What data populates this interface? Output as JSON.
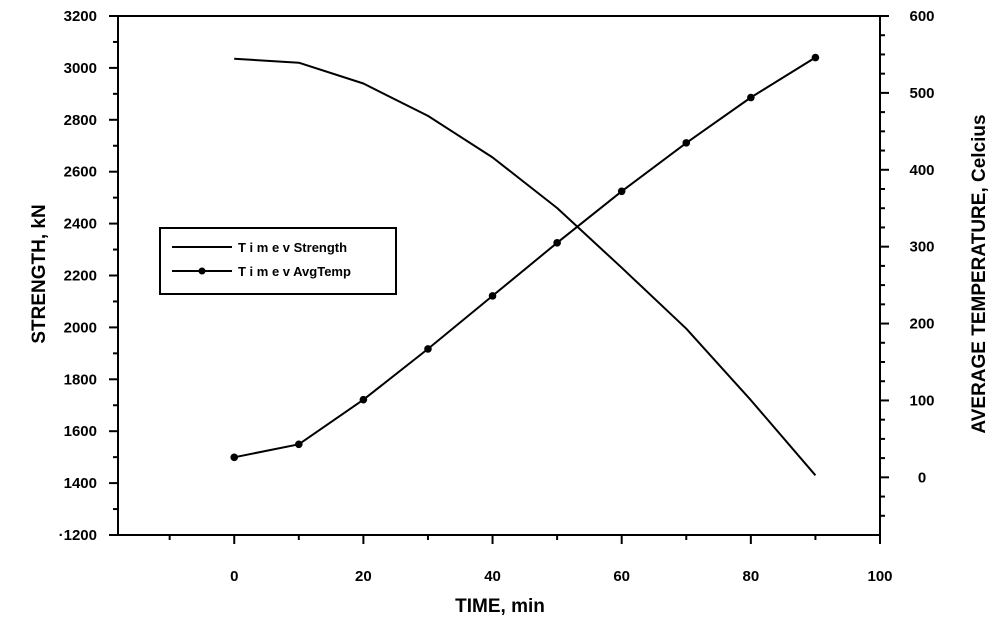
{
  "chart_data": {
    "type": "line",
    "title": "",
    "xlabel": "TIME, min",
    "ylabel": "STRENGTH, kN",
    "y2label": "AVERAGE TEMPERATURE, Celcius",
    "xlim": [
      -18,
      100
    ],
    "ylim": [
      1200,
      3200
    ],
    "y2lim": [
      -75,
      600
    ],
    "x_ticks": [
      0,
      20,
      40,
      60,
      80,
      100
    ],
    "x_tick_labels": [
      "0",
      "20",
      "40",
      "60",
      "80",
      "100"
    ],
    "y_ticks": [
      1200,
      1400,
      1600,
      1800,
      2000,
      2200,
      2400,
      2600,
      2800,
      3000,
      3200
    ],
    "y_tick_labels": [
      "·1200",
      "1400",
      "1600",
      "1800",
      "2000",
      "2200",
      "2400",
      "2600",
      "2800",
      "3000",
      "3200"
    ],
    "y2_ticks": [
      0,
      100,
      200,
      300,
      400,
      500,
      600
    ],
    "y2_tick_labels": [
      "0",
      "100",
      "200",
      "300",
      "400",
      "500",
      "600"
    ],
    "x": [
      0,
      10,
      20,
      30,
      40,
      50,
      60,
      70,
      80,
      90
    ],
    "series": [
      {
        "name": "T i m e v Strength",
        "axis": "left",
        "marker": "none",
        "values": [
          3035,
          3020,
          2940,
          2815,
          2655,
          2460,
          2230,
          1995,
          1720,
          1430
        ]
      },
      {
        "name": "T i m e v AvgTemp",
        "axis": "right",
        "marker": "dot",
        "values": [
          26,
          43,
          101,
          167,
          236,
          305,
          372,
          435,
          494,
          546
        ]
      }
    ],
    "grid": false,
    "legend_position": "middle-left",
    "colors": {
      "line": "#000000",
      "background": "#ffffff"
    }
  }
}
